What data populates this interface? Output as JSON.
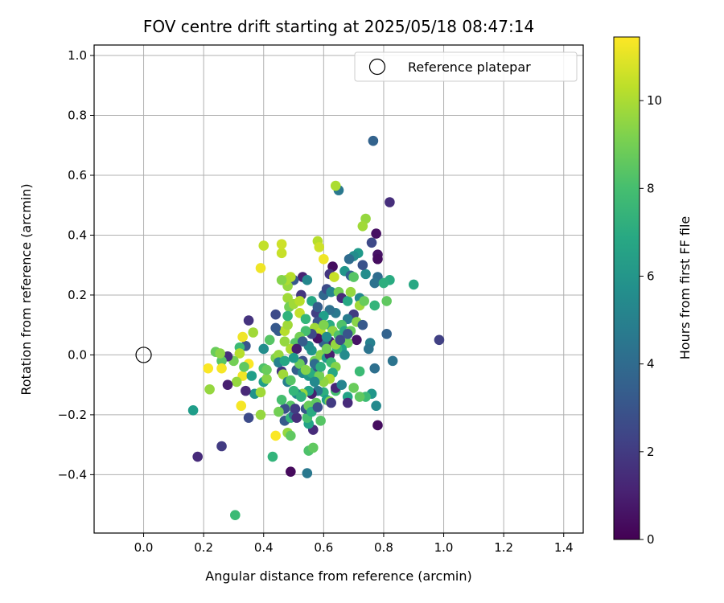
{
  "chart_data": {
    "type": "scatter",
    "title": "FOV centre drift starting at 2025/05/18 08:47:14",
    "xlabel": "Angular distance from reference (arcmin)",
    "ylabel": "Rotation from reference (arcmin)",
    "xlim": [
      -0.165,
      1.465
    ],
    "ylim": [
      -0.595,
      1.035
    ],
    "xticks": [
      0.0,
      0.2,
      0.4,
      0.6,
      0.8,
      1.0,
      1.2,
      1.4
    ],
    "xtick_labels": [
      "0.0",
      "0.2",
      "0.4",
      "0.6",
      "0.8",
      "1.0",
      "1.2",
      "1.4"
    ],
    "yticks": [
      -0.4,
      -0.2,
      0.0,
      0.2,
      0.4,
      0.6,
      0.8,
      1.0
    ],
    "ytick_labels": [
      "−0.4",
      "−0.2",
      "0.0",
      "0.2",
      "0.4",
      "0.6",
      "0.8",
      "1.0"
    ],
    "grid": true,
    "legend": {
      "position": "top-right",
      "entries": [
        "Reference platepar"
      ]
    },
    "reference_point": {
      "x": 0.0,
      "y": 0.0
    },
    "colorbar": {
      "label": "Hours from first FF file",
      "range": [
        0,
        11.45
      ],
      "ticks": [
        0,
        2,
        4,
        6,
        8,
        10
      ],
      "tick_labels": [
        "0",
        "2",
        "4",
        "6",
        "8",
        "10"
      ],
      "colormap": "viridis"
    },
    "points": [
      {
        "x": 0.765,
        "y": 0.715,
        "h": 3.6
      },
      {
        "x": 0.82,
        "y": 0.51,
        "h": 1.5
      },
      {
        "x": 0.985,
        "y": 0.05,
        "h": 2.2
      },
      {
        "x": 0.9,
        "y": 0.235,
        "h": 6.8
      },
      {
        "x": 0.83,
        "y": -0.02,
        "h": 4.4
      },
      {
        "x": 0.81,
        "y": 0.07,
        "h": 3.6
      },
      {
        "x": 0.775,
        "y": 0.405,
        "h": 0.5
      },
      {
        "x": 0.78,
        "y": 0.335,
        "h": 0.6
      },
      {
        "x": 0.78,
        "y": 0.32,
        "h": 0.4
      },
      {
        "x": 0.76,
        "y": 0.375,
        "h": 2.5
      },
      {
        "x": 0.78,
        "y": 0.26,
        "h": 4.0
      },
      {
        "x": 0.77,
        "y": 0.24,
        "h": 4.3
      },
      {
        "x": 0.82,
        "y": 0.25,
        "h": 7.0
      },
      {
        "x": 0.8,
        "y": 0.24,
        "h": 7.2
      },
      {
        "x": 0.81,
        "y": 0.18,
        "h": 8.6
      },
      {
        "x": 0.77,
        "y": 0.165,
        "h": 7.5
      },
      {
        "x": 0.77,
        "y": -0.045,
        "h": 4.2
      },
      {
        "x": 0.775,
        "y": -0.17,
        "h": 5.4
      },
      {
        "x": 0.78,
        "y": -0.235,
        "h": 0.4
      },
      {
        "x": 0.76,
        "y": -0.13,
        "h": 6.0
      },
      {
        "x": 0.74,
        "y": -0.14,
        "h": 7.8
      },
      {
        "x": 0.72,
        "y": -0.14,
        "h": 8.6
      },
      {
        "x": 0.72,
        "y": -0.055,
        "h": 7.8
      },
      {
        "x": 0.755,
        "y": 0.04,
        "h": 5.0
      },
      {
        "x": 0.75,
        "y": 0.02,
        "h": 4.4
      },
      {
        "x": 0.71,
        "y": 0.05,
        "h": 0.6
      },
      {
        "x": 0.74,
        "y": 0.455,
        "h": 9.6
      },
      {
        "x": 0.73,
        "y": 0.43,
        "h": 9.8
      },
      {
        "x": 0.74,
        "y": 0.27,
        "h": 5.6
      },
      {
        "x": 0.73,
        "y": 0.3,
        "h": 2.9
      },
      {
        "x": 0.65,
        "y": 0.55,
        "h": 4.6
      },
      {
        "x": 0.64,
        "y": 0.565,
        "h": 10.0
      },
      {
        "x": 0.715,
        "y": 0.34,
        "h": 6.2
      },
      {
        "x": 0.7,
        "y": 0.33,
        "h": 5.6
      },
      {
        "x": 0.685,
        "y": 0.32,
        "h": 4.0
      },
      {
        "x": 0.67,
        "y": 0.28,
        "h": 6.0
      },
      {
        "x": 0.69,
        "y": 0.265,
        "h": 3.5
      },
      {
        "x": 0.7,
        "y": 0.26,
        "h": 8.4
      },
      {
        "x": 0.63,
        "y": 0.295,
        "h": 0.4
      },
      {
        "x": 0.62,
        "y": 0.27,
        "h": 1.8
      },
      {
        "x": 0.635,
        "y": 0.26,
        "h": 10.5
      },
      {
        "x": 0.6,
        "y": 0.32,
        "h": 11.2
      },
      {
        "x": 0.58,
        "y": 0.38,
        "h": 10.2
      },
      {
        "x": 0.585,
        "y": 0.36,
        "h": 10.6
      },
      {
        "x": 0.53,
        "y": 0.26,
        "h": 1.1
      },
      {
        "x": 0.545,
        "y": 0.25,
        "h": 5.3
      },
      {
        "x": 0.525,
        "y": 0.2,
        "h": 1.8
      },
      {
        "x": 0.5,
        "y": 0.25,
        "h": 3.2
      },
      {
        "x": 0.49,
        "y": 0.26,
        "h": 10.2
      },
      {
        "x": 0.48,
        "y": 0.23,
        "h": 9.6
      },
      {
        "x": 0.475,
        "y": 0.25,
        "h": 10.0
      },
      {
        "x": 0.46,
        "y": 0.25,
        "h": 9.3
      },
      {
        "x": 0.46,
        "y": 0.34,
        "h": 10.5
      },
      {
        "x": 0.46,
        "y": 0.37,
        "h": 10.6
      },
      {
        "x": 0.4,
        "y": 0.365,
        "h": 10.4
      },
      {
        "x": 0.39,
        "y": 0.29,
        "h": 11.2
      },
      {
        "x": 0.48,
        "y": 0.19,
        "h": 9.8
      },
      {
        "x": 0.485,
        "y": 0.16,
        "h": 9.0
      },
      {
        "x": 0.5,
        "y": 0.17,
        "h": 9.8
      },
      {
        "x": 0.52,
        "y": 0.18,
        "h": 10.2
      },
      {
        "x": 0.52,
        "y": 0.14,
        "h": 10.4
      },
      {
        "x": 0.54,
        "y": 0.12,
        "h": 7.6
      },
      {
        "x": 0.56,
        "y": 0.18,
        "h": 6.8
      },
      {
        "x": 0.575,
        "y": 0.14,
        "h": 2.2
      },
      {
        "x": 0.58,
        "y": 0.16,
        "h": 3.4
      },
      {
        "x": 0.6,
        "y": 0.2,
        "h": 3.8
      },
      {
        "x": 0.61,
        "y": 0.22,
        "h": 2.6
      },
      {
        "x": 0.625,
        "y": 0.21,
        "h": 5.2
      },
      {
        "x": 0.65,
        "y": 0.21,
        "h": 9.0
      },
      {
        "x": 0.66,
        "y": 0.19,
        "h": 1.4
      },
      {
        "x": 0.68,
        "y": 0.18,
        "h": 6.8
      },
      {
        "x": 0.69,
        "y": 0.21,
        "h": 9.6
      },
      {
        "x": 0.72,
        "y": 0.19,
        "h": 5.4
      },
      {
        "x": 0.72,
        "y": 0.165,
        "h": 9.8
      },
      {
        "x": 0.735,
        "y": 0.18,
        "h": 8.8
      },
      {
        "x": 0.7,
        "y": 0.135,
        "h": 2.0
      },
      {
        "x": 0.68,
        "y": 0.12,
        "h": 4.8
      },
      {
        "x": 0.66,
        "y": 0.1,
        "h": 8.2
      },
      {
        "x": 0.64,
        "y": 0.14,
        "h": 4.6
      },
      {
        "x": 0.62,
        "y": 0.15,
        "h": 4.2
      },
      {
        "x": 0.6,
        "y": 0.13,
        "h": 6.4
      },
      {
        "x": 0.58,
        "y": 0.11,
        "h": 3.0
      },
      {
        "x": 0.57,
        "y": 0.09,
        "h": 9.8
      },
      {
        "x": 0.59,
        "y": 0.075,
        "h": 10.2
      },
      {
        "x": 0.62,
        "y": 0.1,
        "h": 7.0
      },
      {
        "x": 0.63,
        "y": 0.08,
        "h": 9.5
      },
      {
        "x": 0.65,
        "y": 0.065,
        "h": 8.2
      },
      {
        "x": 0.67,
        "y": 0.08,
        "h": 6.8
      },
      {
        "x": 0.69,
        "y": 0.08,
        "h": 8.8
      },
      {
        "x": 0.71,
        "y": 0.11,
        "h": 9.4
      },
      {
        "x": 0.73,
        "y": 0.1,
        "h": 3.2
      },
      {
        "x": 0.68,
        "y": 0.04,
        "h": 8.9
      },
      {
        "x": 0.66,
        "y": 0.02,
        "h": 6.5
      },
      {
        "x": 0.67,
        "y": 0.0,
        "h": 5.5
      },
      {
        "x": 0.645,
        "y": 0.02,
        "h": 7.5
      },
      {
        "x": 0.62,
        "y": 0.045,
        "h": 1.0
      },
      {
        "x": 0.6,
        "y": 0.04,
        "h": 3.6
      },
      {
        "x": 0.58,
        "y": 0.055,
        "h": 0.6
      },
      {
        "x": 0.56,
        "y": 0.07,
        "h": 2.5
      },
      {
        "x": 0.54,
        "y": 0.08,
        "h": 8.0
      },
      {
        "x": 0.52,
        "y": 0.06,
        "h": 9.0
      },
      {
        "x": 0.505,
        "y": 0.04,
        "h": 8.4
      },
      {
        "x": 0.49,
        "y": 0.02,
        "h": 10.0
      },
      {
        "x": 0.47,
        "y": 0.045,
        "h": 9.6
      },
      {
        "x": 0.45,
        "y": 0.08,
        "h": 3.4
      },
      {
        "x": 0.47,
        "y": 0.08,
        "h": 10.2
      },
      {
        "x": 0.48,
        "y": 0.1,
        "h": 9.8
      },
      {
        "x": 0.44,
        "y": 0.09,
        "h": 3.2
      },
      {
        "x": 0.44,
        "y": 0.135,
        "h": 2.6
      },
      {
        "x": 0.48,
        "y": 0.13,
        "h": 7.4
      },
      {
        "x": 0.42,
        "y": 0.05,
        "h": 8.4
      },
      {
        "x": 0.4,
        "y": 0.02,
        "h": 5.6
      },
      {
        "x": 0.35,
        "y": 0.115,
        "h": 1.7
      },
      {
        "x": 0.365,
        "y": 0.075,
        "h": 9.8
      },
      {
        "x": 0.34,
        "y": 0.03,
        "h": 3.0
      },
      {
        "x": 0.33,
        "y": 0.06,
        "h": 11.2
      },
      {
        "x": 0.32,
        "y": 0.025,
        "h": 7.8
      },
      {
        "x": 0.32,
        "y": 0.005,
        "h": 10.2
      },
      {
        "x": 0.35,
        "y": -0.03,
        "h": 11.4
      },
      {
        "x": 0.33,
        "y": -0.07,
        "h": 11.2
      },
      {
        "x": 0.335,
        "y": -0.04,
        "h": 8.6
      },
      {
        "x": 0.36,
        "y": -0.07,
        "h": 6.4
      },
      {
        "x": 0.37,
        "y": -0.13,
        "h": 5.8
      },
      {
        "x": 0.34,
        "y": -0.12,
        "h": 1.3
      },
      {
        "x": 0.31,
        "y": -0.09,
        "h": 9.6
      },
      {
        "x": 0.3,
        "y": -0.02,
        "h": 9.0
      },
      {
        "x": 0.28,
        "y": -0.005,
        "h": 1.5
      },
      {
        "x": 0.26,
        "y": -0.02,
        "h": 8.4
      },
      {
        "x": 0.24,
        "y": 0.01,
        "h": 8.8
      },
      {
        "x": 0.255,
        "y": 0.005,
        "h": 9.4
      },
      {
        "x": 0.215,
        "y": -0.045,
        "h": 11.4
      },
      {
        "x": 0.26,
        "y": -0.045,
        "h": 11.3
      },
      {
        "x": 0.22,
        "y": -0.115,
        "h": 9.6
      },
      {
        "x": 0.28,
        "y": -0.1,
        "h": 1.0
      },
      {
        "x": 0.325,
        "y": -0.17,
        "h": 11.3
      },
      {
        "x": 0.35,
        "y": -0.21,
        "h": 2.6
      },
      {
        "x": 0.39,
        "y": -0.2,
        "h": 9.6
      },
      {
        "x": 0.39,
        "y": -0.125,
        "h": 9.8
      },
      {
        "x": 0.4,
        "y": -0.09,
        "h": 6.4
      },
      {
        "x": 0.41,
        "y": -0.08,
        "h": 9.4
      },
      {
        "x": 0.4,
        "y": -0.045,
        "h": 8.2
      },
      {
        "x": 0.41,
        "y": -0.05,
        "h": 8.8
      },
      {
        "x": 0.44,
        "y": -0.01,
        "h": 9.2
      },
      {
        "x": 0.45,
        "y": 0.0,
        "h": 9.6
      },
      {
        "x": 0.46,
        "y": -0.055,
        "h": 1.8
      },
      {
        "x": 0.465,
        "y": -0.065,
        "h": 9.8
      },
      {
        "x": 0.48,
        "y": -0.09,
        "h": 5.0
      },
      {
        "x": 0.49,
        "y": -0.085,
        "h": 8.4
      },
      {
        "x": 0.51,
        "y": -0.05,
        "h": 3.4
      },
      {
        "x": 0.53,
        "y": -0.02,
        "h": 2.8
      },
      {
        "x": 0.52,
        "y": -0.03,
        "h": 8.8
      },
      {
        "x": 0.53,
        "y": -0.06,
        "h": 5.4
      },
      {
        "x": 0.55,
        "y": -0.07,
        "h": 6.0
      },
      {
        "x": 0.56,
        "y": -0.06,
        "h": 7.0
      },
      {
        "x": 0.57,
        "y": -0.02,
        "h": 9.0
      },
      {
        "x": 0.58,
        "y": -0.04,
        "h": 3.0
      },
      {
        "x": 0.59,
        "y": 0.0,
        "h": 9.4
      },
      {
        "x": 0.61,
        "y": -0.01,
        "h": 6.2
      },
      {
        "x": 0.62,
        "y": 0.0,
        "h": 1.0
      },
      {
        "x": 0.625,
        "y": -0.025,
        "h": 7.8
      },
      {
        "x": 0.64,
        "y": -0.04,
        "h": 9.3
      },
      {
        "x": 0.63,
        "y": -0.06,
        "h": 6.8
      },
      {
        "x": 0.62,
        "y": -0.08,
        "h": 10.0
      },
      {
        "x": 0.6,
        "y": -0.09,
        "h": 9.5
      },
      {
        "x": 0.585,
        "y": -0.07,
        "h": 9.0
      },
      {
        "x": 0.6,
        "y": -0.125,
        "h": 7.2
      },
      {
        "x": 0.58,
        "y": -0.12,
        "h": 4.6
      },
      {
        "x": 0.56,
        "y": -0.13,
        "h": 1.0
      },
      {
        "x": 0.55,
        "y": -0.12,
        "h": 6.6
      },
      {
        "x": 0.53,
        "y": -0.13,
        "h": 9.6
      },
      {
        "x": 0.51,
        "y": -0.13,
        "h": 5.4
      },
      {
        "x": 0.5,
        "y": -0.12,
        "h": 7.6
      },
      {
        "x": 0.49,
        "y": -0.17,
        "h": 8.4
      },
      {
        "x": 0.47,
        "y": -0.18,
        "h": 2.8
      },
      {
        "x": 0.46,
        "y": -0.15,
        "h": 8.0
      },
      {
        "x": 0.45,
        "y": -0.19,
        "h": 9.0
      },
      {
        "x": 0.47,
        "y": -0.22,
        "h": 3.2
      },
      {
        "x": 0.49,
        "y": -0.21,
        "h": 7.6
      },
      {
        "x": 0.5,
        "y": -0.2,
        "h": 4.2
      },
      {
        "x": 0.51,
        "y": -0.21,
        "h": 1.5
      },
      {
        "x": 0.48,
        "y": -0.26,
        "h": 9.6
      },
      {
        "x": 0.49,
        "y": -0.27,
        "h": 8.6
      },
      {
        "x": 0.44,
        "y": -0.27,
        "h": 11.4
      },
      {
        "x": 0.43,
        "y": -0.34,
        "h": 7.5
      },
      {
        "x": 0.49,
        "y": -0.39,
        "h": 0.3
      },
      {
        "x": 0.545,
        "y": -0.395,
        "h": 4.6
      },
      {
        "x": 0.55,
        "y": -0.32,
        "h": 8.2
      },
      {
        "x": 0.565,
        "y": -0.31,
        "h": 8.6
      },
      {
        "x": 0.565,
        "y": -0.25,
        "h": 1.4
      },
      {
        "x": 0.55,
        "y": -0.23,
        "h": 6.6
      },
      {
        "x": 0.545,
        "y": -0.21,
        "h": 8.0
      },
      {
        "x": 0.54,
        "y": -0.18,
        "h": 3.0
      },
      {
        "x": 0.55,
        "y": -0.17,
        "h": 8.8
      },
      {
        "x": 0.56,
        "y": -0.19,
        "h": 7.0
      },
      {
        "x": 0.575,
        "y": -0.16,
        "h": 8.6
      },
      {
        "x": 0.58,
        "y": -0.175,
        "h": 2.8
      },
      {
        "x": 0.59,
        "y": -0.22,
        "h": 8.4
      },
      {
        "x": 0.61,
        "y": -0.15,
        "h": 6.4
      },
      {
        "x": 0.62,
        "y": -0.155,
        "h": 9.2
      },
      {
        "x": 0.625,
        "y": -0.16,
        "h": 2.0
      },
      {
        "x": 0.64,
        "y": -0.12,
        "h": 8.0
      },
      {
        "x": 0.64,
        "y": -0.11,
        "h": 1.2
      },
      {
        "x": 0.66,
        "y": -0.1,
        "h": 5.2
      },
      {
        "x": 0.68,
        "y": -0.14,
        "h": 6.6
      },
      {
        "x": 0.68,
        "y": -0.16,
        "h": 1.4
      },
      {
        "x": 0.7,
        "y": -0.11,
        "h": 8.8
      },
      {
        "x": 0.57,
        "y": -0.03,
        "h": 4.0
      },
      {
        "x": 0.56,
        "y": 0.015,
        "h": 6.0
      },
      {
        "x": 0.55,
        "y": 0.03,
        "h": 5.6
      },
      {
        "x": 0.53,
        "y": 0.045,
        "h": 3.3
      },
      {
        "x": 0.51,
        "y": 0.02,
        "h": 0.9
      },
      {
        "x": 0.5,
        "y": -0.01,
        "h": 6.2
      },
      {
        "x": 0.6,
        "y": 0.1,
        "h": 9.2
      },
      {
        "x": 0.61,
        "y": 0.06,
        "h": 5.6
      },
      {
        "x": 0.64,
        "y": 0.035,
        "h": 9.6
      },
      {
        "x": 0.655,
        "y": 0.05,
        "h": 2.5
      },
      {
        "x": 0.68,
        "y": 0.07,
        "h": 3.0
      },
      {
        "x": 0.45,
        "y": -0.025,
        "h": 5.0
      },
      {
        "x": 0.47,
        "y": -0.02,
        "h": 6.8
      },
      {
        "x": 0.57,
        "y": -0.09,
        "h": 5.4
      },
      {
        "x": 0.59,
        "y": -0.04,
        "h": 7.2
      },
      {
        "x": 0.61,
        "y": 0.02,
        "h": 9.0
      },
      {
        "x": 0.525,
        "y": -0.14,
        "h": 7.3
      },
      {
        "x": 0.505,
        "y": -0.18,
        "h": 2.0
      },
      {
        "x": 0.54,
        "y": -0.05,
        "h": 9.3
      },
      {
        "x": 0.165,
        "y": -0.185,
        "h": 6.3
      },
      {
        "x": 0.18,
        "y": -0.34,
        "h": 1.4
      },
      {
        "x": 0.26,
        "y": -0.305,
        "h": 2.0
      },
      {
        "x": 0.305,
        "y": -0.535,
        "h": 7.8
      }
    ]
  }
}
